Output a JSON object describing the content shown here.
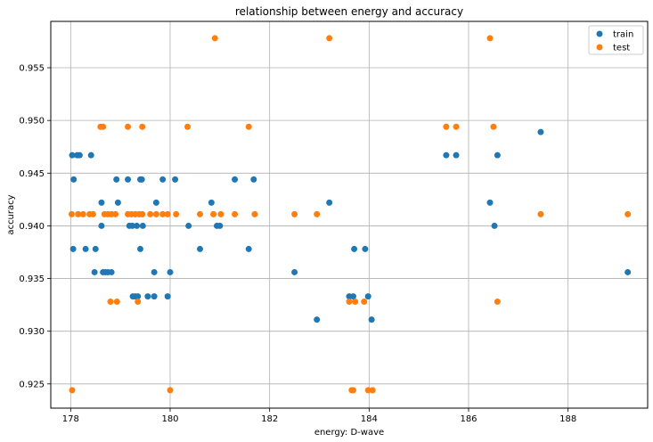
{
  "chart_data": {
    "type": "scatter",
    "title": "relationship between energy and accuracy",
    "xlabel": "energy: D-wave",
    "ylabel": "accuracy",
    "xlim": [
      177.6,
      189.6
    ],
    "ylim": [
      0.9227,
      0.9594
    ],
    "xticks": [
      178,
      180,
      182,
      184,
      186,
      188
    ],
    "yticks": [
      0.925,
      0.93,
      0.935,
      0.94,
      0.945,
      0.95,
      0.955
    ],
    "ytick_labels": [
      "0.925",
      "0.930",
      "0.935",
      "0.940",
      "0.945",
      "0.950",
      "0.955"
    ],
    "grid": true,
    "legend_position": "top-right",
    "series": [
      {
        "name": "train",
        "color": "#1f77b4",
        "points": [
          [
            178.03,
            0.9467
          ],
          [
            178.13,
            0.9467
          ],
          [
            178.18,
            0.9467
          ],
          [
            178.41,
            0.9467
          ],
          [
            178.06,
            0.9444
          ],
          [
            178.92,
            0.9444
          ],
          [
            179.15,
            0.9444
          ],
          [
            179.4,
            0.9444
          ],
          [
            179.43,
            0.9444
          ],
          [
            179.85,
            0.9444
          ],
          [
            180.1,
            0.9444
          ],
          [
            181.3,
            0.9444
          ],
          [
            181.68,
            0.9444
          ],
          [
            178.62,
            0.9422
          ],
          [
            178.95,
            0.9422
          ],
          [
            179.72,
            0.9422
          ],
          [
            180.83,
            0.9422
          ],
          [
            183.2,
            0.9422
          ],
          [
            178.05,
            0.9378
          ],
          [
            178.3,
            0.9378
          ],
          [
            178.5,
            0.9378
          ],
          [
            179.4,
            0.9378
          ],
          [
            180.6,
            0.9378
          ],
          [
            181.58,
            0.9378
          ],
          [
            183.7,
            0.9378
          ],
          [
            183.92,
            0.9378
          ],
          [
            178.48,
            0.9356
          ],
          [
            178.65,
            0.9356
          ],
          [
            178.7,
            0.9356
          ],
          [
            178.75,
            0.9356
          ],
          [
            178.82,
            0.9356
          ],
          [
            179.68,
            0.9356
          ],
          [
            180.0,
            0.9356
          ],
          [
            182.5,
            0.9356
          ],
          [
            179.25,
            0.9333
          ],
          [
            179.3,
            0.9333
          ],
          [
            179.35,
            0.9333
          ],
          [
            179.55,
            0.9333
          ],
          [
            179.68,
            0.9333
          ],
          [
            179.95,
            0.9333
          ],
          [
            183.6,
            0.9333
          ],
          [
            183.68,
            0.9333
          ],
          [
            183.98,
            0.9333
          ],
          [
            178.62,
            0.94
          ],
          [
            179.18,
            0.94
          ],
          [
            179.24,
            0.94
          ],
          [
            179.33,
            0.94
          ],
          [
            179.45,
            0.94
          ],
          [
            180.37,
            0.94
          ],
          [
            180.94,
            0.94
          ],
          [
            181.0,
            0.94
          ],
          [
            182.95,
            0.9311
          ],
          [
            184.05,
            0.9311
          ],
          [
            185.55,
            0.9467
          ],
          [
            185.75,
            0.9467
          ],
          [
            186.58,
            0.9467
          ],
          [
            186.43,
            0.9422
          ],
          [
            186.52,
            0.94
          ],
          [
            187.45,
            0.9489
          ],
          [
            189.2,
            0.9356
          ]
        ]
      },
      {
        "name": "test",
        "color": "#ff7f0e",
        "points": [
          [
            178.02,
            0.9411
          ],
          [
            178.15,
            0.9411
          ],
          [
            178.25,
            0.9411
          ],
          [
            178.38,
            0.9411
          ],
          [
            178.45,
            0.9411
          ],
          [
            178.68,
            0.9411
          ],
          [
            178.75,
            0.9411
          ],
          [
            178.82,
            0.9411
          ],
          [
            178.9,
            0.9411
          ],
          [
            179.15,
            0.9411
          ],
          [
            179.22,
            0.9411
          ],
          [
            179.3,
            0.9411
          ],
          [
            179.38,
            0.9411
          ],
          [
            179.44,
            0.9411
          ],
          [
            179.6,
            0.9411
          ],
          [
            179.72,
            0.9411
          ],
          [
            179.85,
            0.9411
          ],
          [
            179.95,
            0.9411
          ],
          [
            180.12,
            0.9411
          ],
          [
            180.6,
            0.9411
          ],
          [
            180.87,
            0.9411
          ],
          [
            181.02,
            0.9411
          ],
          [
            181.3,
            0.9411
          ],
          [
            181.7,
            0.9411
          ],
          [
            182.5,
            0.9411
          ],
          [
            182.95,
            0.9411
          ],
          [
            187.45,
            0.9411
          ],
          [
            189.2,
            0.9411
          ],
          [
            178.6,
            0.9494
          ],
          [
            178.65,
            0.9494
          ],
          [
            179.15,
            0.9494
          ],
          [
            179.44,
            0.9494
          ],
          [
            180.35,
            0.9494
          ],
          [
            181.58,
            0.9494
          ],
          [
            185.55,
            0.9494
          ],
          [
            185.75,
            0.9494
          ],
          [
            186.5,
            0.9494
          ],
          [
            180.9,
            0.9578
          ],
          [
            183.2,
            0.9578
          ],
          [
            186.43,
            0.9578
          ],
          [
            178.8,
            0.9328
          ],
          [
            178.93,
            0.9328
          ],
          [
            179.35,
            0.9328
          ],
          [
            183.6,
            0.9328
          ],
          [
            183.72,
            0.9328
          ],
          [
            183.9,
            0.9328
          ],
          [
            186.58,
            0.9328
          ],
          [
            178.03,
            0.9244
          ],
          [
            180.0,
            0.9244
          ],
          [
            183.65,
            0.9244
          ],
          [
            183.68,
            0.9244
          ],
          [
            183.98,
            0.9244
          ],
          [
            184.07,
            0.9244
          ]
        ]
      }
    ]
  }
}
